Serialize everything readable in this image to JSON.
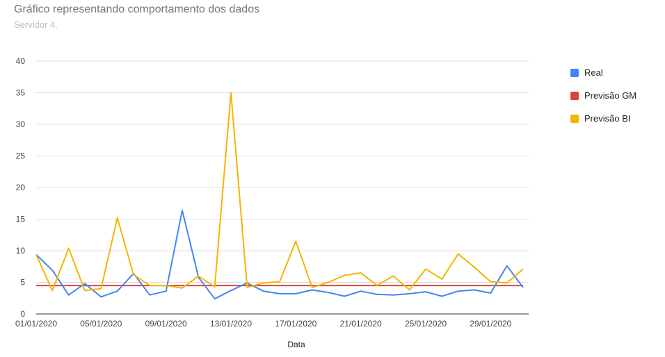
{
  "title": "Gráfico representando comportamento dos dados",
  "subtitle": "Servidor 4.",
  "chart_data": {
    "type": "line",
    "title": "Gráfico representando comportamento dos dados",
    "subtitle": "Servidor 4.",
    "xlabel": "Data",
    "ylabel": "",
    "ylim": [
      0,
      40
    ],
    "yticks": [
      "0",
      "5",
      "10",
      "15",
      "20",
      "25",
      "30",
      "35",
      "40"
    ],
    "grid": true,
    "legend_position": "right",
    "x": [
      "01/01/2020",
      "02/01/2020",
      "03/01/2020",
      "04/01/2020",
      "05/01/2020",
      "06/01/2020",
      "07/01/2020",
      "08/01/2020",
      "09/01/2020",
      "10/01/2020",
      "11/01/2020",
      "12/01/2020",
      "13/01/2020",
      "14/01/2020",
      "15/01/2020",
      "16/01/2020",
      "17/01/2020",
      "18/01/2020",
      "19/01/2020",
      "20/01/2020",
      "21/01/2020",
      "22/01/2020",
      "23/01/2020",
      "24/01/2020",
      "25/01/2020",
      "26/01/2020",
      "27/01/2020",
      "28/01/2020",
      "29/01/2020",
      "30/01/2020",
      "31/01/2020"
    ],
    "xtick_labels": [
      "01/01/2020",
      "05/01/2020",
      "09/01/2020",
      "13/01/2020",
      "17/01/2020",
      "21/01/2020",
      "25/01/2020",
      "29/01/2020"
    ],
    "series": [
      {
        "name": "Real",
        "color": "#4285f4",
        "values": [
          9.4,
          6.9,
          3.0,
          4.8,
          2.7,
          3.6,
          6.4,
          3.0,
          3.6,
          16.4,
          5.8,
          2.4,
          3.7,
          4.9,
          3.6,
          3.2,
          3.2,
          3.8,
          3.4,
          2.8,
          3.6,
          3.1,
          3.0,
          3.2,
          3.5,
          2.8,
          3.6,
          3.8,
          3.3,
          7.6,
          4.2
        ]
      },
      {
        "name": "Previsão GM",
        "color": "#db4437",
        "values": [
          4.5,
          4.5,
          4.5,
          4.5,
          4.5,
          4.5,
          4.5,
          4.5,
          4.5,
          4.5,
          4.5,
          4.5,
          4.5,
          4.5,
          4.5,
          4.5,
          4.5,
          4.5,
          4.5,
          4.5,
          4.5,
          4.5,
          4.5,
          4.5,
          4.5,
          4.5,
          4.5,
          4.5,
          4.5,
          4.5,
          4.5
        ]
      },
      {
        "name": "Previsão BI",
        "color": "#f4b400",
        "values": [
          9.4,
          3.7,
          10.4,
          3.7,
          4.0,
          15.2,
          6.2,
          4.5,
          4.5,
          4.1,
          6.0,
          4.3,
          35.0,
          4.2,
          4.9,
          5.1,
          11.5,
          4.2,
          5.0,
          6.1,
          6.5,
          4.5,
          6.0,
          3.8,
          7.1,
          5.5,
          9.5,
          7.4,
          5.1,
          4.9,
          7.1
        ]
      }
    ]
  }
}
